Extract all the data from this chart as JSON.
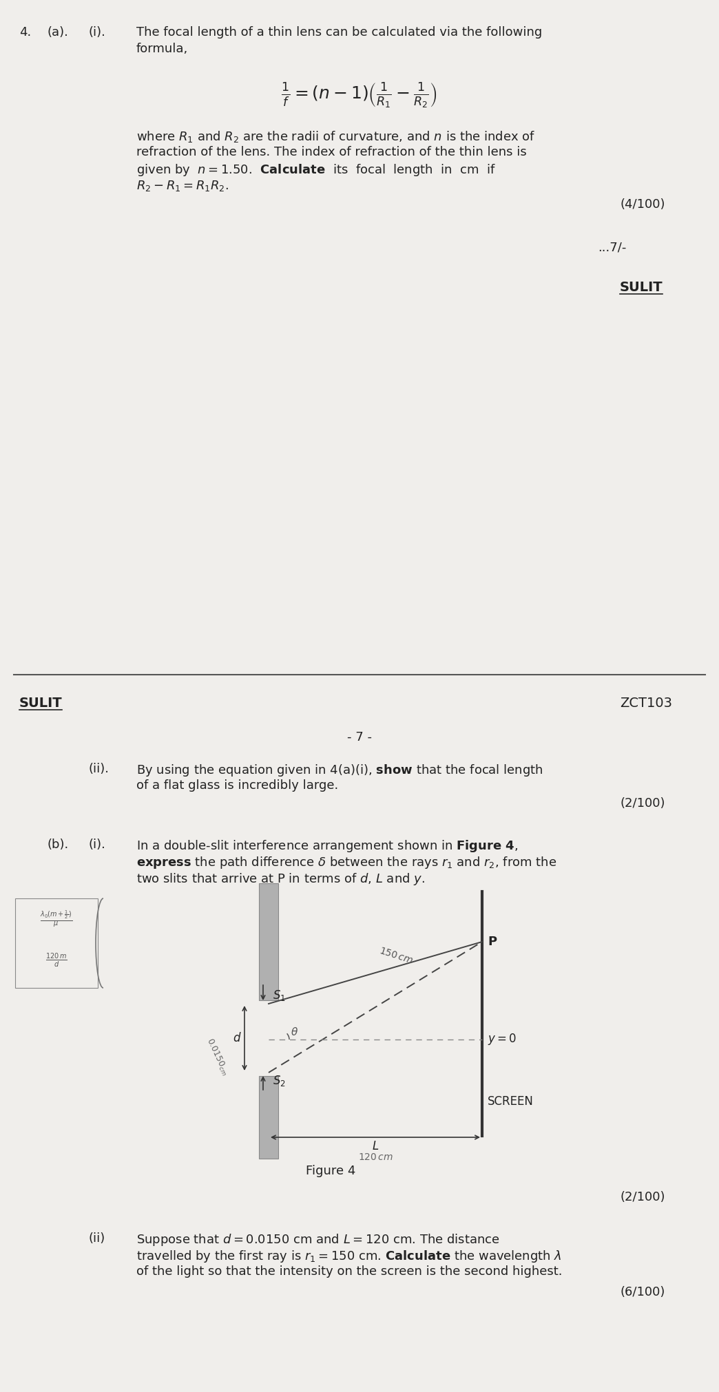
{
  "bg_color": "#f0eeeb",
  "text_color": "#222222",
  "page1": {
    "q_number": "4.",
    "q_a": "(a).",
    "q_i": "(i).",
    "intro_line1": "The focal length of a thin lens can be calculated via the following",
    "intro_line2": "formula,",
    "formula": "$\\frac{1}{f} = (n-1)\\left(\\frac{1}{R_1} - \\frac{1}{R_2}\\right)$",
    "body_line1": "where $R_1$ and $R_2$ are the radii of curvature, and $n$ is the index of",
    "body_line2": "refraction of the lens. The index of refraction of the thin lens is",
    "body_line3": "given by  $n = 1.50$.  \\textbf{Calculate}  its  focal  length  in  cm  if",
    "body_line4": "$R_2 - R_1 = R_1R_2$.",
    "marks1": "(4/100)",
    "page_ref": "...7/-",
    "sulit_right": "SULIT"
  },
  "page2": {
    "sulit_left": "SULIT",
    "zct": "ZCT103",
    "page_num": "- 7 -",
    "q_ii_label": "(ii).",
    "text_ii_line1": "By using the equation given in 4(a)(i), \\textbf{show} that the focal length",
    "text_ii_line2": "of a flat glass is incredibly large.",
    "marks_ii": "(2/100)",
    "q_b": "(b).",
    "q_bi": "(i).",
    "text_bi_line1": "In a double-slit interference arrangement shown in \\textbf{Figure 4},",
    "text_bi_line2": "\\textbf{express} the path difference $\\delta$ between the rays $r_1$ and $r_2$, from the",
    "text_bi_line3": "two slits that arrive at P in terms of $d$, $L$ and $y$.",
    "formula_left1": "$\\frac{\\lambda_0(m+\\frac{1}{2})}{\\mu}$",
    "formula_left2": "$\\frac{120\\,m}{d}$",
    "label_150cm": "$150\\,cm$",
    "label_P": "P",
    "label_S1": "$S_1$",
    "label_S2": "$S_2$",
    "label_d": "$d$",
    "label_y0": "$y = 0$",
    "label_theta": "$\\theta$",
    "label_screen": "SCREEN",
    "label_L": "$L$",
    "label_120cm": "$120\\,cm$",
    "label_0150": "$0.0150_{cm}$",
    "fig_caption": "Figure 4",
    "marks_bi": "(2/100)",
    "q_bii": "(ii)",
    "text_bii_line1": "Suppose that $d = 0.0150$ cm and $L = 120$ cm. The distance",
    "text_bii_line2": "travelled by the first ray is $r_1 = 150$ cm. $\\mathbf{Calculate}$ the wavelength $\\lambda$",
    "text_bii_line3": "of the light so that the intensity on the screen is the second highest.",
    "marks_bii": "(6/100)"
  }
}
